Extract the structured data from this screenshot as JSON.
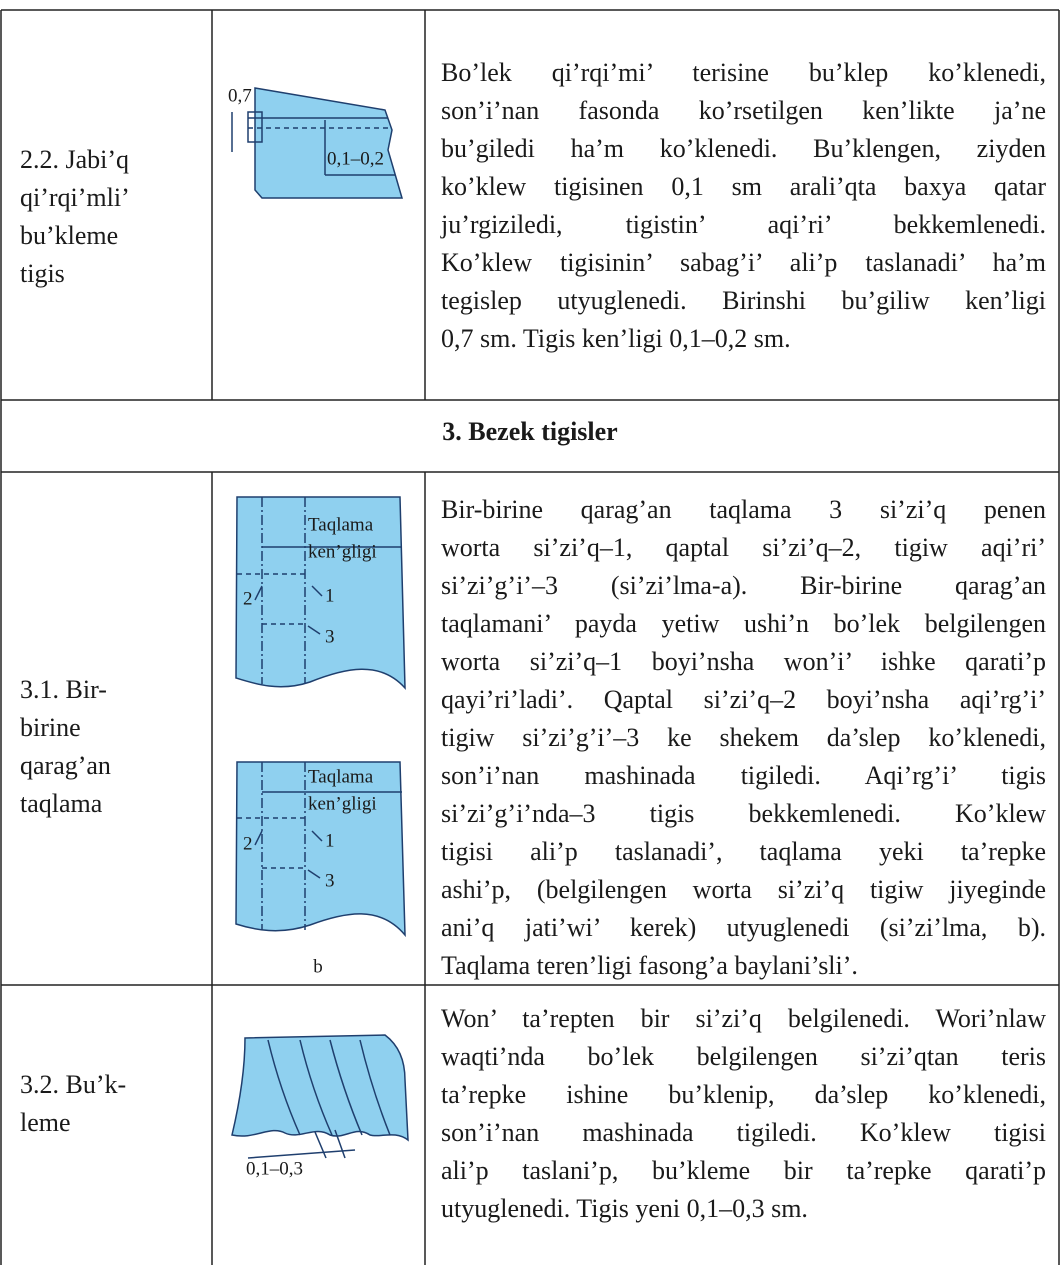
{
  "table": {
    "rows": [
      {
        "name": [
          "2.2. Jabi’q",
          "qi’rqi’mli’",
          "bu’kleme",
          "tigis"
        ],
        "figure_labels": [
          "0,7",
          "0,1–0,2"
        ],
        "description": [
          "Bo’lek qi’rqi’mi’ terisine bu’klep ko’klenedi,",
          "son’i’nan fasonda ko’rsetilgen ken’likte ja’ne",
          "bu’giledi ha’m ko’klenedi. Bu’klengen, ziyden",
          "ko’klew tigisinen 0,1 sm arali’qta baxya qatar",
          "ju’rgiziledi, tigistin’ aqi’ri’ bekkemlenedi.",
          "Ko’klew tigisinin’ sabag’i’ ali’p taslanadi’ ha’m",
          "tegislep utyuglenedi. Birinshi bu’giliw ken’ligi",
          "0,7 sm. Tigis ken’ligi 0,1–0,2 sm."
        ]
      },
      {
        "section": "3. Bezek tigisler"
      },
      {
        "name": [
          "3.1. Bir-",
          "birine",
          "qarag’an",
          "taqlama"
        ],
        "figure_labels": [
          "Taqlama",
          "ken’gligi",
          "2",
          "1",
          "3",
          "Taqlama",
          "ken’gligi",
          "2",
          "1",
          "3",
          "b"
        ],
        "description": [
          "Bir-birine qarag’an taqlama 3 si’zi’q penen",
          "worta si’zi’q–1, qaptal si’zi’q–2, tigiw aqi’ri’",
          "si’zi’g’i’–3 (si’zi’lma-a). Bir-birine qarag’an",
          "taqlamani’ payda yetiw ushi’n bo’lek belgilengen",
          "worta si’zi’q–1 boyi’nsha won’i’ ishke qarati’p",
          "qayi’ri’ladi’. Qaptal si’zi’q–2 boyi’nsha aqi’rg’i’",
          "tigiw si’zi’g’i’–3 ke shekem da’slep ko’klenedi,",
          "son’i’nan mashinada tigiledi. Aqi’rg’i’ tigis",
          "si’zi’g’i’nda–3 tigis bekkemlenedi. Ko’klew",
          "tigisi ali’p taslanadi’, taqlama yeki ta’repke",
          "ashi’p, (belgilengen worta si’zi’q tigiw jiyeginde",
          "ani’q jati’wi’ kerek) utyuglenedi (si’zi’lma, b).",
          "Taqlama teren’ligi fasong’a baylani’sli’."
        ]
      },
      {
        "name": [
          "3.2. Bu’k-",
          "leme"
        ],
        "figure_labels": [
          "0,1–0,3"
        ],
        "description": [
          "Won’ ta’repten bir si’zi’q belgilenedi. Wori’nlaw",
          "waqti’nda bo’lek belgilengen si’zi’qtan teris",
          "ta’repke ishine bu’klenip, da’slep ko’klenedi,",
          "son’i’nan mashinada tigiledi. Ko’klew tigisi",
          "ali’p taslani’p, bu’kleme bir ta’repke qarati’p",
          "utyuglenedi. Tigis yeni 0,1–0,3 sm."
        ]
      }
    ]
  }
}
